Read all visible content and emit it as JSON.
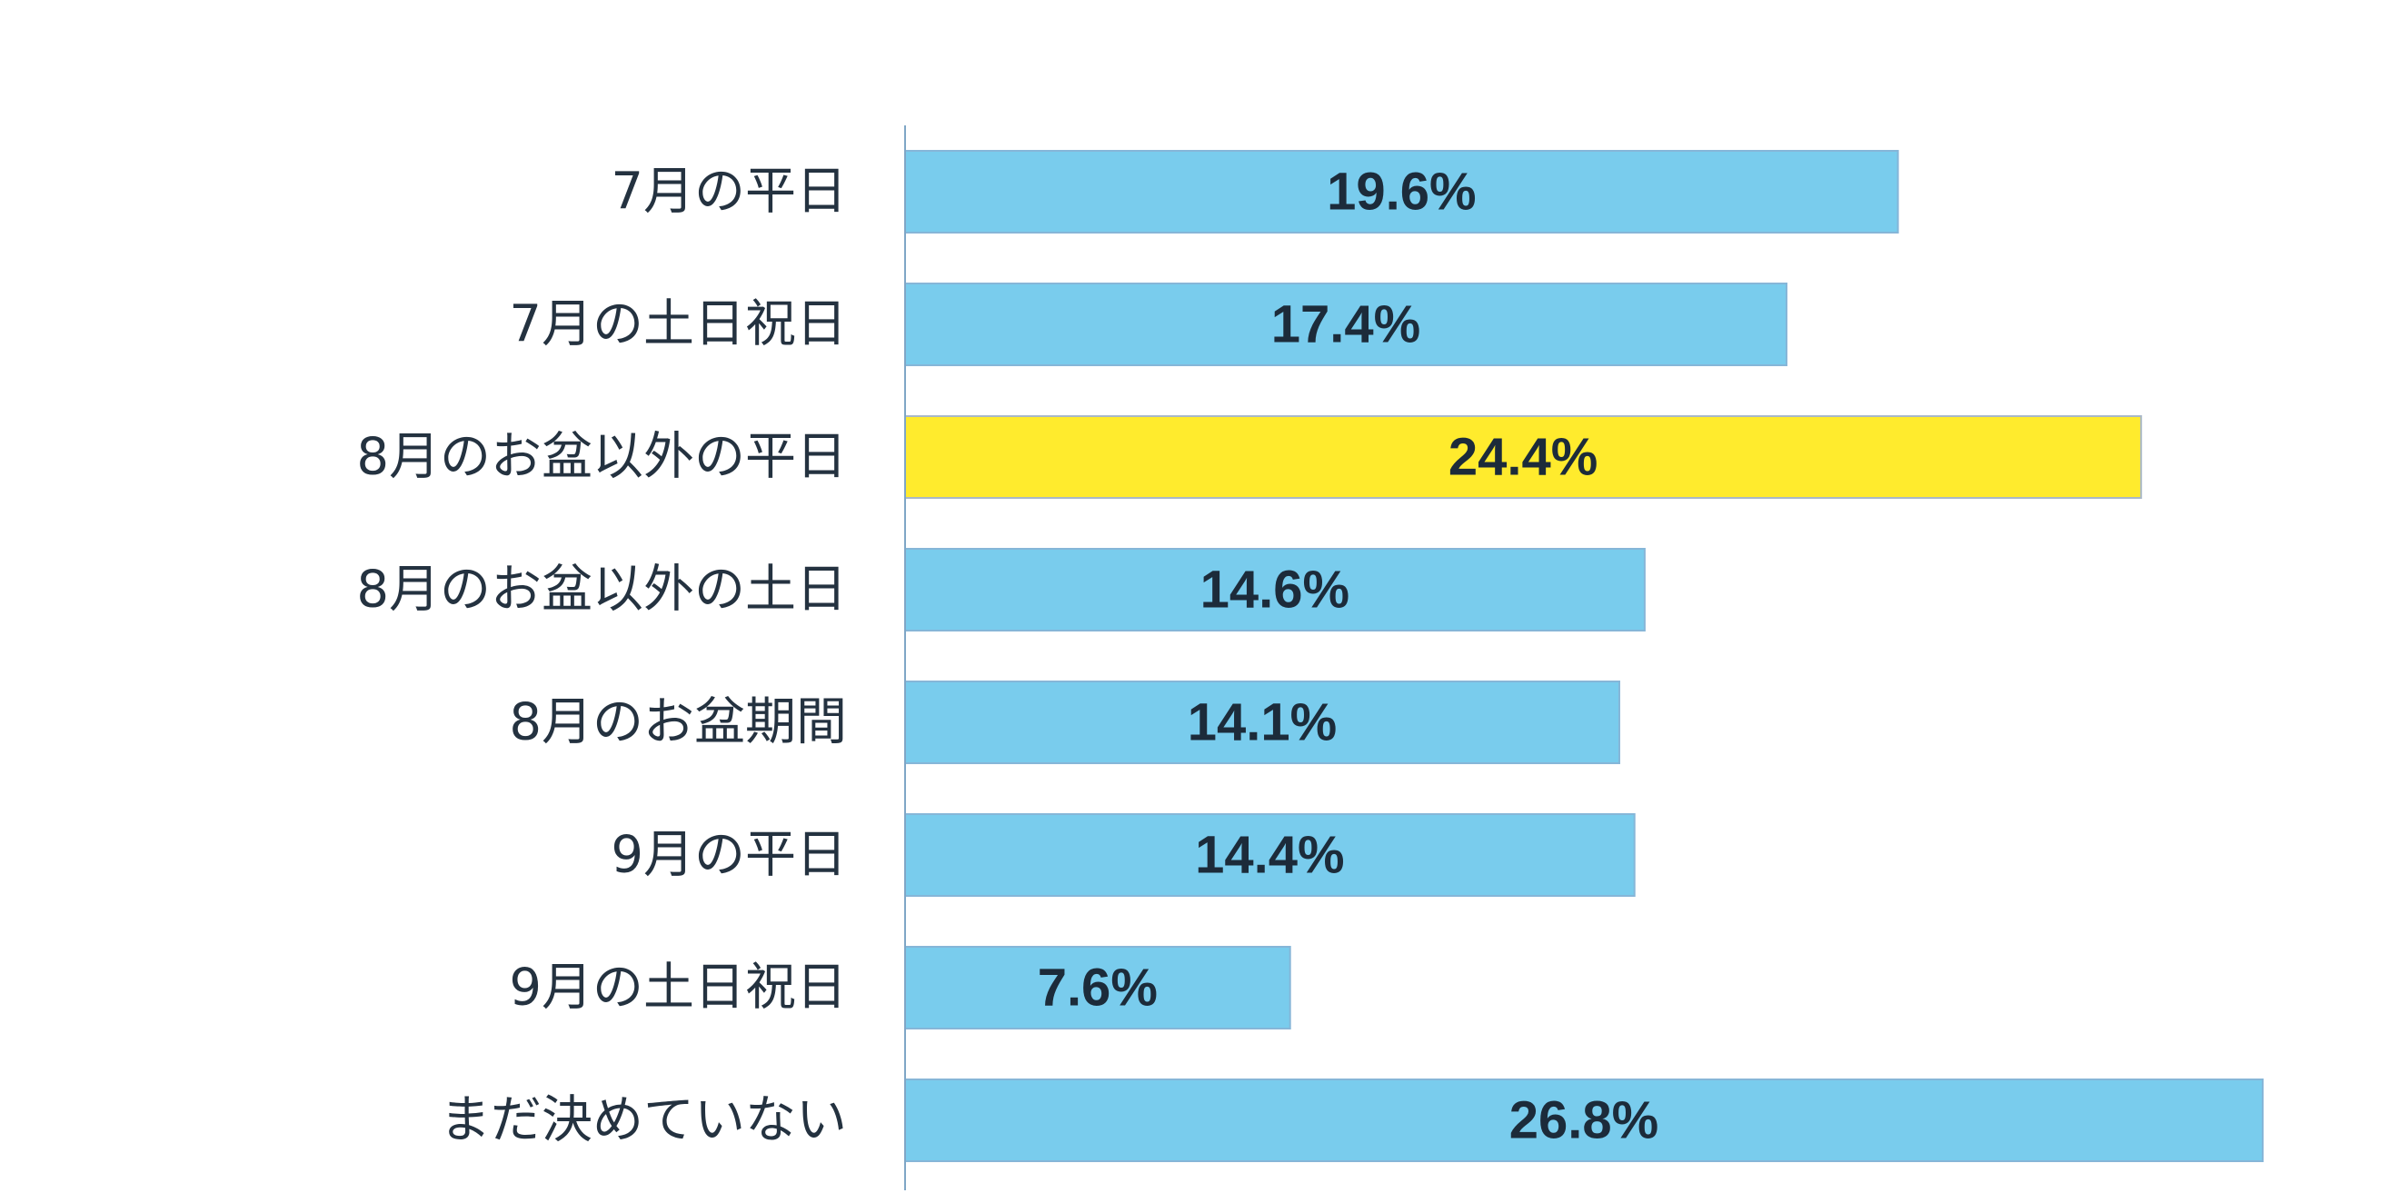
{
  "chart_data": {
    "type": "bar",
    "orientation": "horizontal",
    "title": "",
    "xlabel": "",
    "ylabel": "",
    "categories": [
      "7月の平日",
      "7月の土日祝日",
      "8月のお盆以外の平日",
      "8月のお盆以外の土日",
      "8月のお盆期間",
      "9月の平日",
      "9月の土日祝日",
      "まだ決めていない"
    ],
    "values": [
      19.6,
      17.4,
      24.4,
      14.6,
      14.1,
      14.4,
      7.6,
      26.8
    ],
    "value_labels": [
      "19.6%",
      "17.4%",
      "24.4%",
      "14.6%",
      "14.1%",
      "14.4%",
      "7.6%",
      "26.8%"
    ],
    "highlight_index": 2,
    "xlim": [
      0,
      26.8
    ],
    "grid": false,
    "legend": "none",
    "colors": {
      "bar": "#79cced",
      "bar_border": "#86b6d8",
      "highlight": "#ffeb2d",
      "highlight_border": "#a9b8c8",
      "axis": "#7fa6c6",
      "label_text": "#243240",
      "value_text": "#1c2b3a"
    }
  }
}
